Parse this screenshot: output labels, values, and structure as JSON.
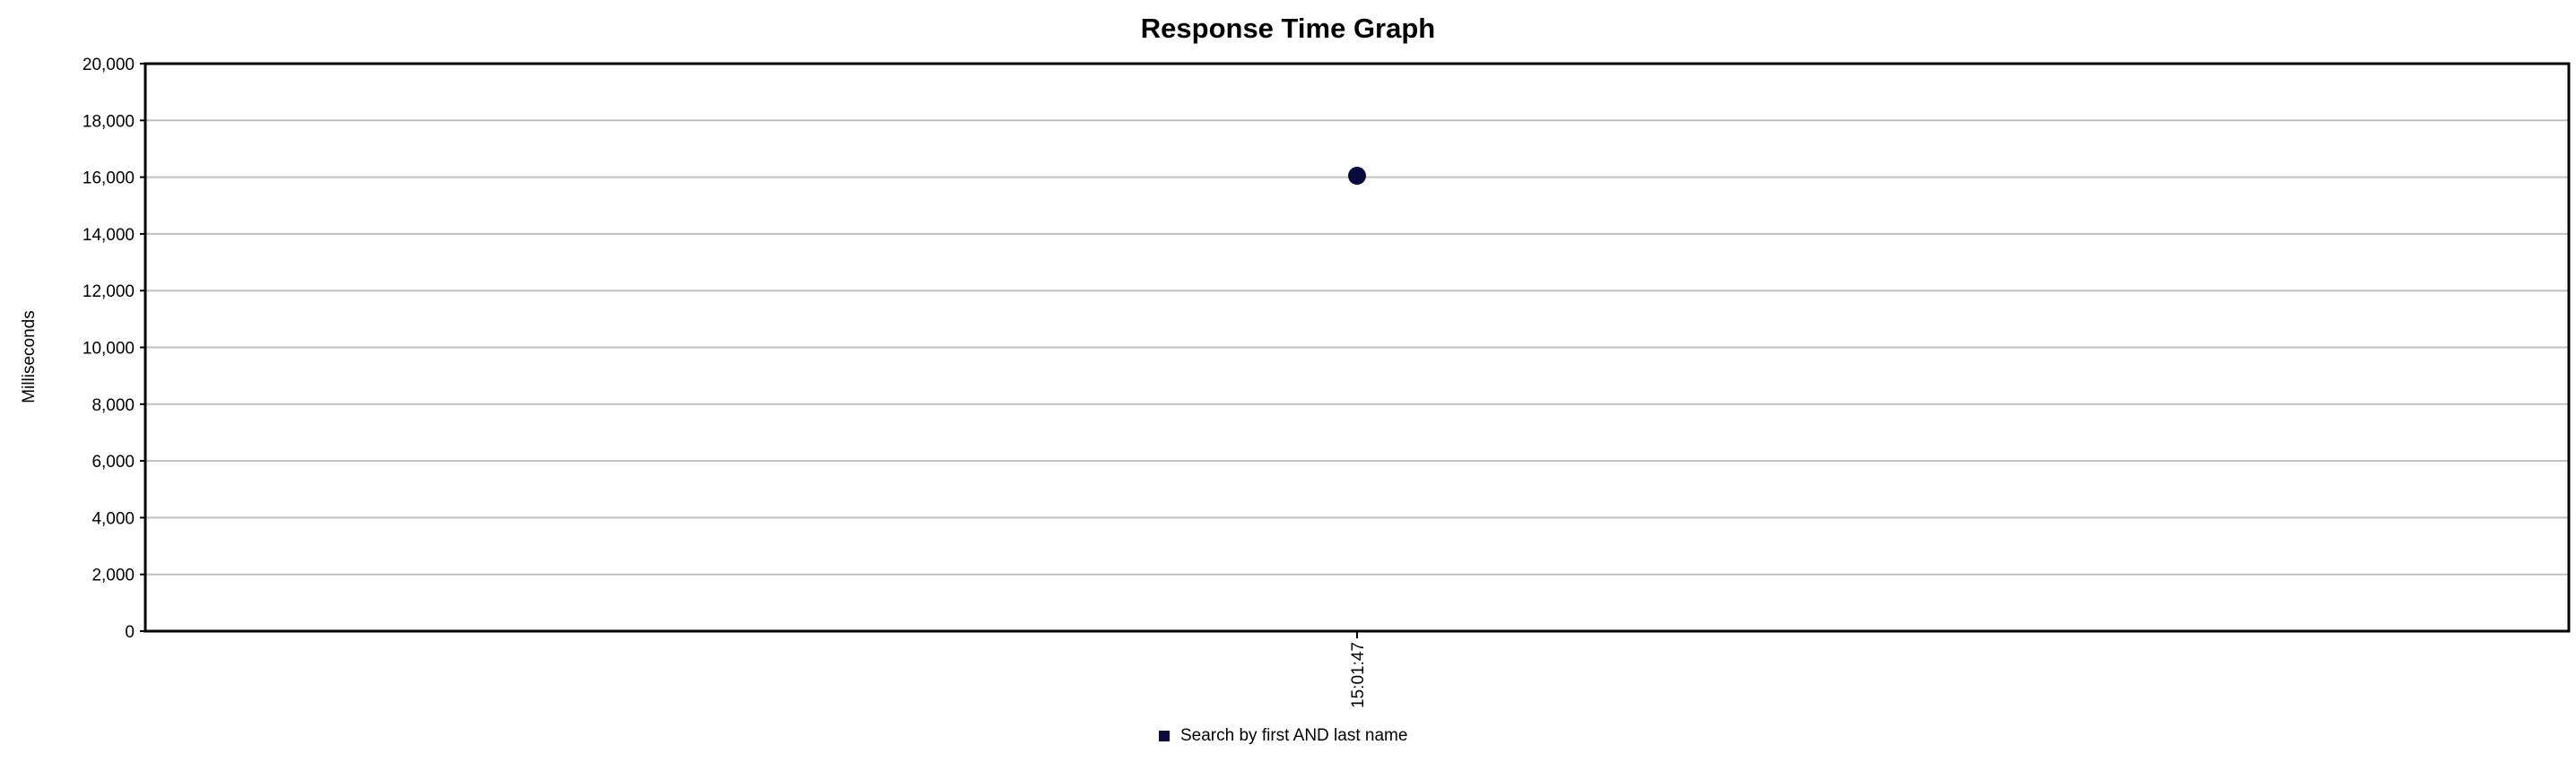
{
  "chart_data": {
    "type": "scatter",
    "title": "Response Time Graph",
    "xlabel": "",
    "ylabel": "Milliseconds",
    "ylim": [
      0,
      20000
    ],
    "y_ticks": [
      {
        "value": 0,
        "label": "0"
      },
      {
        "value": 2000,
        "label": "2,000"
      },
      {
        "value": 4000,
        "label": "4,000"
      },
      {
        "value": 6000,
        "label": "6,000"
      },
      {
        "value": 8000,
        "label": "8,000"
      },
      {
        "value": 10000,
        "label": "10,000"
      },
      {
        "value": 12000,
        "label": "12,000"
      },
      {
        "value": 14000,
        "label": "14,000"
      },
      {
        "value": 16000,
        "label": "16,000"
      },
      {
        "value": 18000,
        "label": "18,000"
      },
      {
        "value": 20000,
        "label": "20,000"
      }
    ],
    "categories": [
      "15:01:47"
    ],
    "series": [
      {
        "name": "Search by first AND last name",
        "color": "#0a0a3c",
        "values": [
          16050
        ]
      }
    ],
    "grid": true,
    "legend_position": "bottom-center"
  }
}
